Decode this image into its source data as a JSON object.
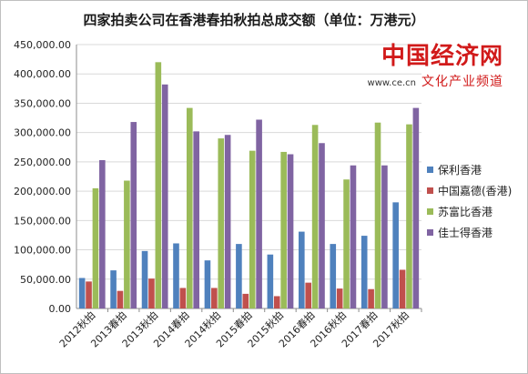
{
  "chart_data": {
    "type": "bar",
    "title": "四家拍卖公司在香港春拍秋拍总成交额（单位：万港元）",
    "xlabel": "",
    "ylabel": "",
    "ylim": [
      0,
      450000
    ],
    "yticks": [
      "0.00",
      "50,000.00",
      "100,000.00",
      "150,000.00",
      "200,000.00",
      "250,000.00",
      "300,000.00",
      "350,000.00",
      "400,000.00",
      "450,000.00"
    ],
    "grid": true,
    "legend_position": "right",
    "categories": [
      "2012秋拍",
      "2013春拍",
      "2013秋拍",
      "2014春拍",
      "2014秋拍",
      "2015春拍",
      "2015秋拍",
      "2016春拍",
      "2016秋拍",
      "2017春拍",
      "2017秋拍"
    ],
    "series": [
      {
        "name": "保利香港",
        "color": "#4f81bd",
        "values": [
          52000,
          65000,
          98000,
          111000,
          82000,
          110000,
          92000,
          131000,
          110000,
          124000,
          181000
        ]
      },
      {
        "name": "中国嘉德(香港)",
        "color": "#c0504d",
        "values": [
          46000,
          30000,
          51000,
          35000,
          35000,
          25000,
          21000,
          44000,
          34000,
          33000,
          66000
        ]
      },
      {
        "name": "苏富比香港",
        "color": "#9bbb59",
        "values": [
          205000,
          218000,
          420000,
          342000,
          290000,
          269000,
          267000,
          313000,
          220000,
          317000,
          314000
        ]
      },
      {
        "name": "佳士得香港",
        "color": "#8064a2",
        "values": [
          253000,
          318000,
          382000,
          302000,
          296000,
          322000,
          263000,
          282000,
          244000,
          244000,
          342000
        ]
      }
    ]
  },
  "watermark": {
    "brand_cn": "中国经济",
    "brand_en": "网",
    "url": "www.ce.cn",
    "channel": "文化产业频道"
  }
}
